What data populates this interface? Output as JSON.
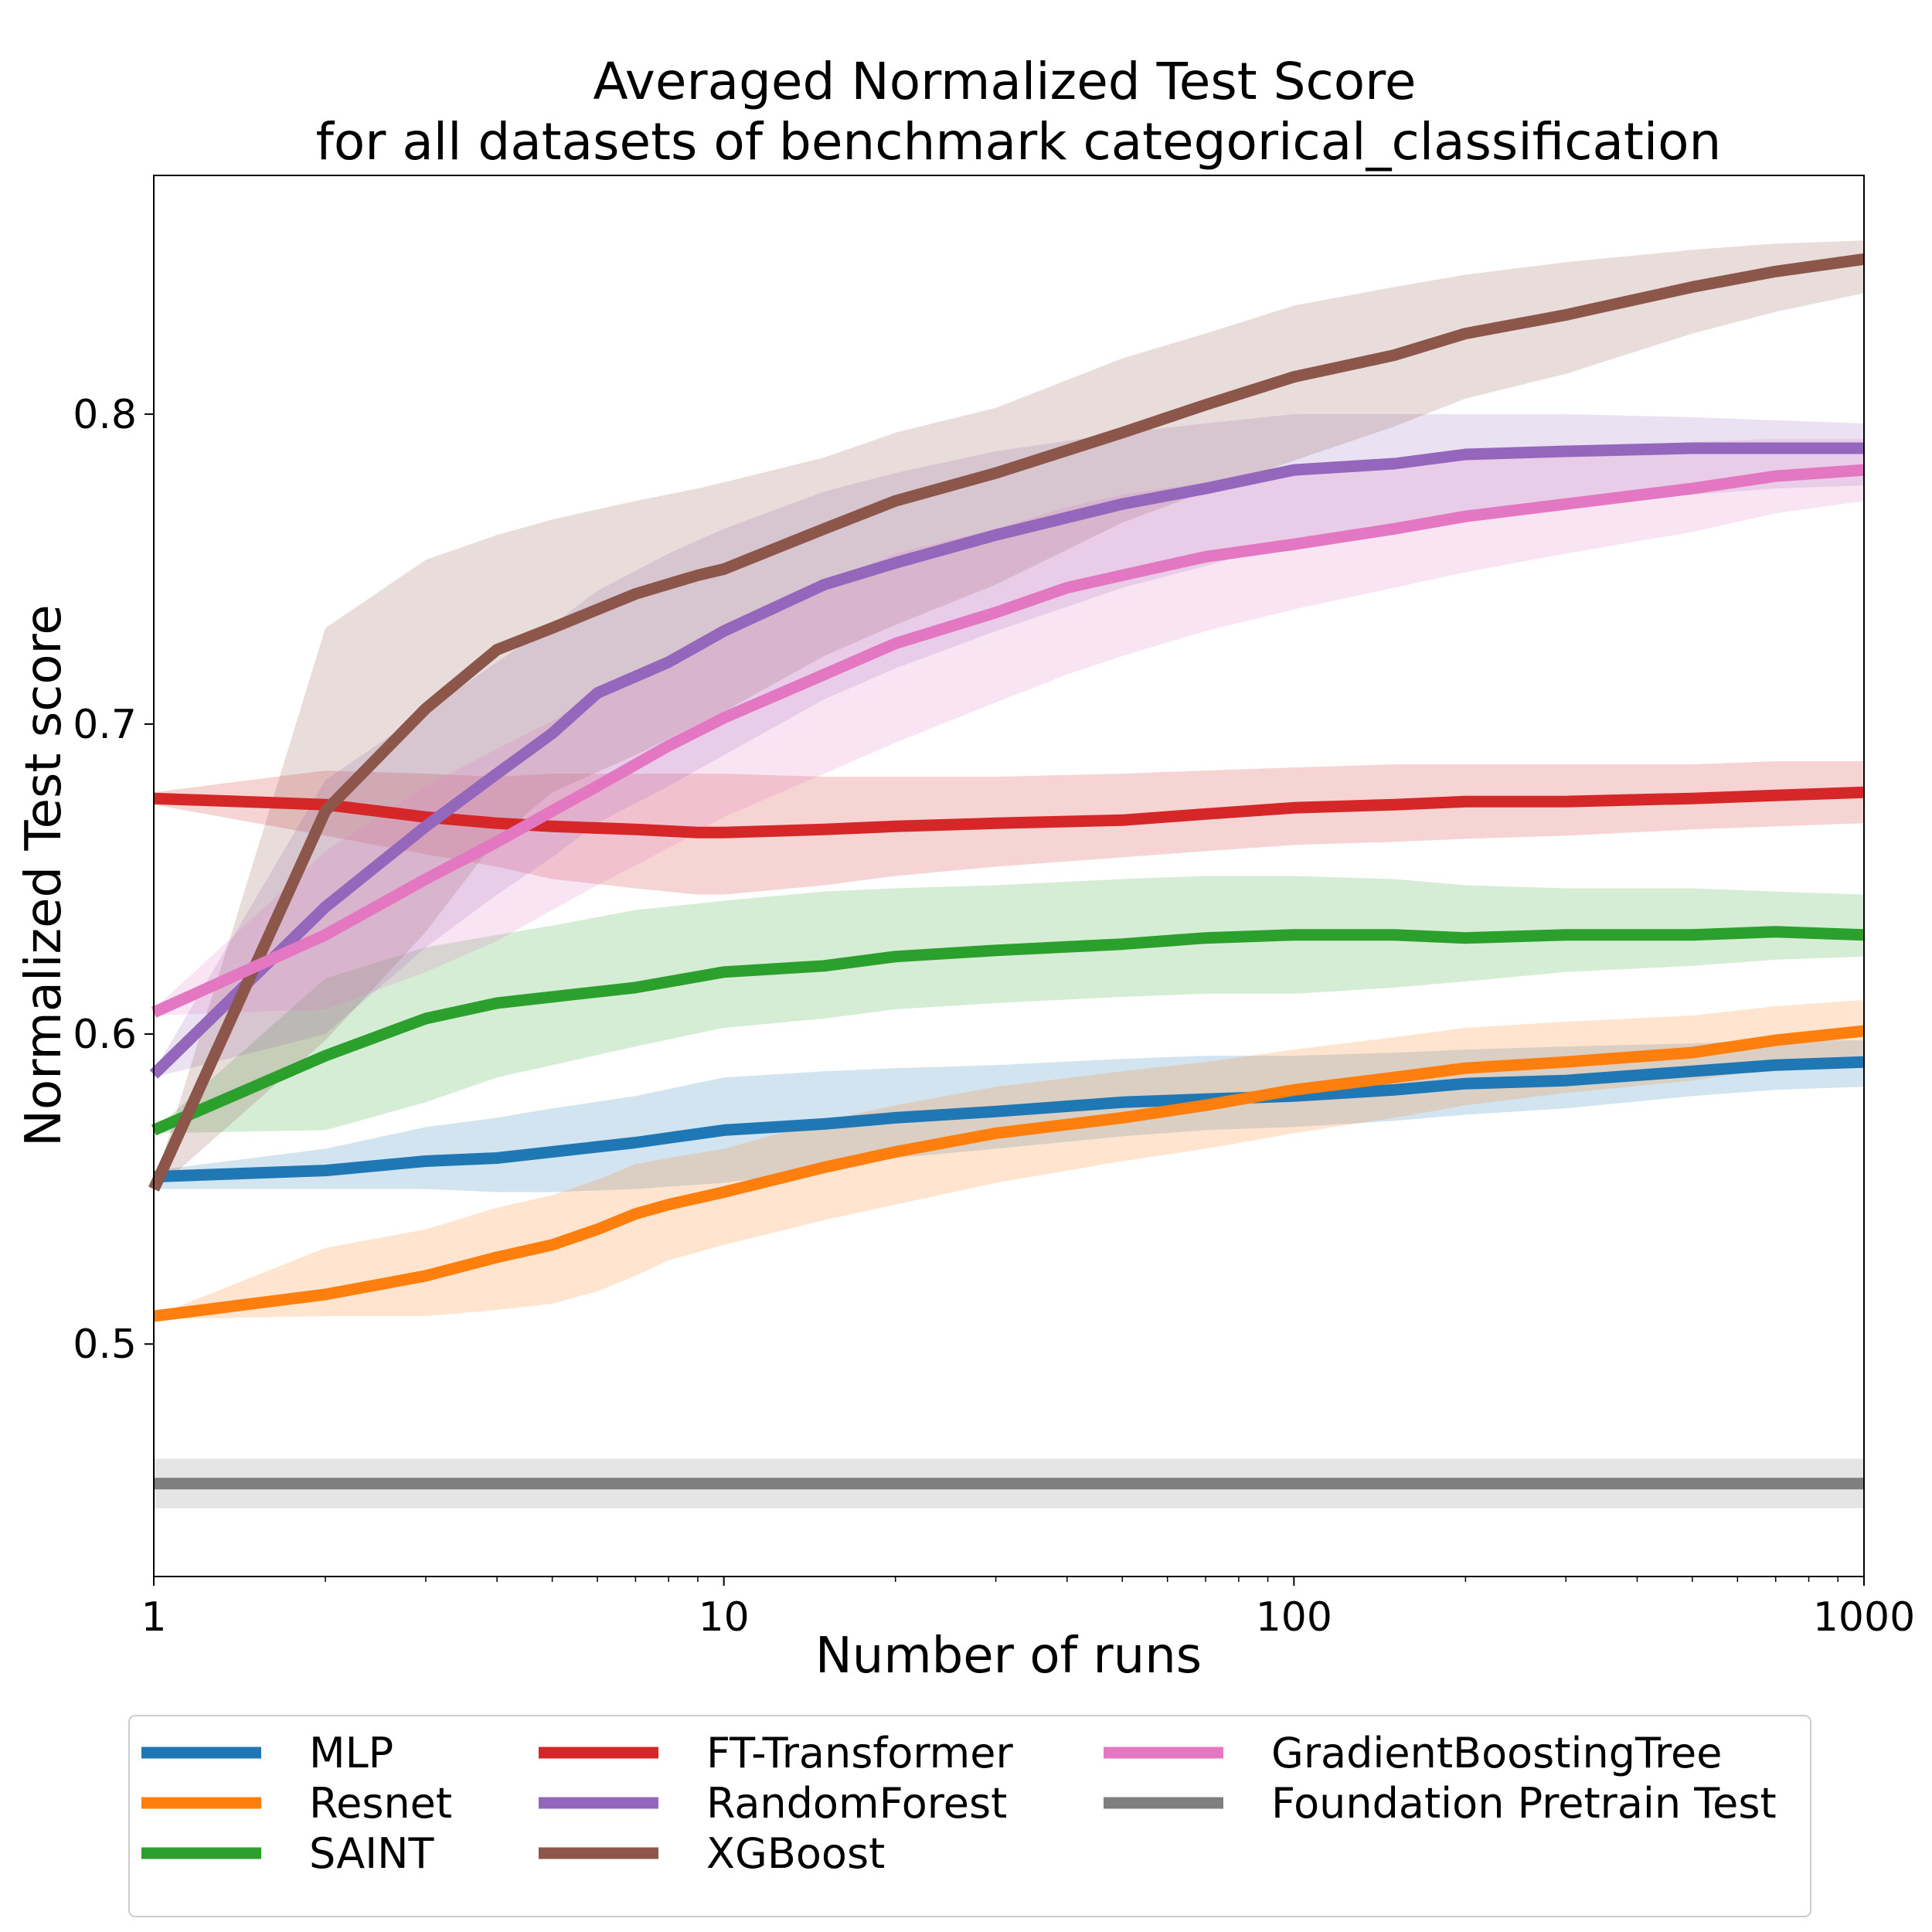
{
  "chart_data": {
    "type": "line",
    "title_line1": "Averaged Normalized Test Score",
    "title_line2": "for all datasets of benchmark categorical_classification",
    "xlabel": "Number of runs",
    "ylabel": "Normalized Test score",
    "xscale": "log",
    "xlim": [
      1,
      1000
    ],
    "ylim": [
      0.425,
      0.877
    ],
    "xticks": [
      {
        "value": 1,
        "label": "1"
      },
      {
        "value": 10,
        "label": "10"
      },
      {
        "value": 100,
        "label": "100"
      },
      {
        "value": 1000,
        "label": "1000"
      }
    ],
    "yticks": [
      {
        "value": 0.5,
        "label": "0.5"
      },
      {
        "value": 0.6,
        "label": "0.6"
      },
      {
        "value": 0.7,
        "label": "0.7"
      },
      {
        "value": 0.8,
        "label": "0.8"
      }
    ],
    "grid": false,
    "legend_position": "bottom",
    "legend_columns": 3,
    "series": [
      {
        "name": "MLP",
        "color": "#1f77b4",
        "x": [
          1,
          2,
          3,
          4,
          5,
          7,
          10,
          15,
          20,
          30,
          50,
          70,
          100,
          150,
          200,
          300,
          500,
          700,
          1000
        ],
        "y": [
          0.554,
          0.556,
          0.559,
          0.56,
          0.562,
          0.565,
          0.569,
          0.571,
          0.573,
          0.575,
          0.578,
          0.579,
          0.58,
          0.582,
          0.584,
          0.585,
          0.588,
          0.59,
          0.591
        ],
        "lower": [
          0.55,
          0.55,
          0.55,
          0.549,
          0.549,
          0.55,
          0.552,
          0.556,
          0.56,
          0.563,
          0.567,
          0.569,
          0.57,
          0.572,
          0.574,
          0.576,
          0.58,
          0.582,
          0.583
        ],
        "upper": [
          0.556,
          0.563,
          0.57,
          0.573,
          0.576,
          0.58,
          0.586,
          0.588,
          0.589,
          0.59,
          0.592,
          0.593,
          0.593,
          0.594,
          0.595,
          0.596,
          0.597,
          0.598,
          0.598
        ]
      },
      {
        "name": "Resnet",
        "color": "#ff7f0e",
        "x": [
          1,
          2,
          3,
          4,
          5,
          6,
          7,
          8,
          10,
          15,
          20,
          30,
          50,
          70,
          100,
          150,
          200,
          300,
          500,
          700,
          1000
        ],
        "y": [
          0.509,
          0.516,
          0.522,
          0.528,
          0.532,
          0.537,
          0.542,
          0.545,
          0.549,
          0.557,
          0.562,
          0.568,
          0.573,
          0.577,
          0.582,
          0.586,
          0.589,
          0.591,
          0.594,
          0.598,
          0.601
        ],
        "lower": [
          0.508,
          0.509,
          0.509,
          0.511,
          0.513,
          0.517,
          0.522,
          0.527,
          0.532,
          0.54,
          0.545,
          0.552,
          0.559,
          0.563,
          0.568,
          0.573,
          0.577,
          0.581,
          0.585,
          0.589,
          0.592
        ],
        "upper": [
          0.509,
          0.531,
          0.537,
          0.544,
          0.548,
          0.553,
          0.558,
          0.56,
          0.563,
          0.572,
          0.577,
          0.583,
          0.588,
          0.591,
          0.595,
          0.599,
          0.602,
          0.604,
          0.606,
          0.609,
          0.611
        ]
      },
      {
        "name": "SAINT",
        "color": "#2ca02c",
        "x": [
          1,
          2,
          3,
          4,
          5,
          7,
          10,
          15,
          20,
          30,
          50,
          70,
          100,
          150,
          200,
          300,
          500,
          700,
          1000
        ],
        "y": [
          0.569,
          0.593,
          0.605,
          0.61,
          0.612,
          0.615,
          0.62,
          0.622,
          0.625,
          0.627,
          0.629,
          0.631,
          0.632,
          0.632,
          0.631,
          0.632,
          0.632,
          0.633,
          0.632
        ],
        "lower": [
          0.568,
          0.569,
          0.578,
          0.586,
          0.59,
          0.596,
          0.602,
          0.605,
          0.608,
          0.61,
          0.612,
          0.613,
          0.613,
          0.615,
          0.617,
          0.62,
          0.622,
          0.624,
          0.625
        ],
        "upper": [
          0.569,
          0.618,
          0.628,
          0.632,
          0.635,
          0.64,
          0.643,
          0.646,
          0.647,
          0.648,
          0.65,
          0.651,
          0.651,
          0.65,
          0.648,
          0.647,
          0.647,
          0.646,
          0.645
        ]
      },
      {
        "name": "FT-Transformer",
        "color": "#d62728",
        "x": [
          1,
          2,
          3,
          4,
          5,
          7,
          9,
          10,
          15,
          20,
          30,
          50,
          70,
          100,
          150,
          200,
          300,
          500,
          700,
          1000
        ],
        "y": [
          0.676,
          0.674,
          0.67,
          0.668,
          0.667,
          0.666,
          0.665,
          0.665,
          0.666,
          0.667,
          0.668,
          0.669,
          0.671,
          0.673,
          0.674,
          0.675,
          0.675,
          0.676,
          0.677,
          0.678
        ],
        "lower": [
          0.674,
          0.664,
          0.658,
          0.654,
          0.65,
          0.647,
          0.645,
          0.645,
          0.648,
          0.651,
          0.654,
          0.657,
          0.659,
          0.661,
          0.662,
          0.663,
          0.664,
          0.666,
          0.667,
          0.668
        ],
        "upper": [
          0.678,
          0.685,
          0.684,
          0.683,
          0.684,
          0.684,
          0.684,
          0.684,
          0.683,
          0.683,
          0.683,
          0.684,
          0.685,
          0.686,
          0.687,
          0.687,
          0.687,
          0.687,
          0.688,
          0.688
        ]
      },
      {
        "name": "RandomForest",
        "color": "#9467bd",
        "x": [
          1,
          2,
          3,
          4,
          5,
          6,
          8,
          10,
          15,
          20,
          30,
          50,
          70,
          100,
          150,
          200,
          300,
          500,
          700,
          1000
        ],
        "y": [
          0.587,
          0.641,
          0.667,
          0.684,
          0.697,
          0.71,
          0.72,
          0.73,
          0.745,
          0.752,
          0.761,
          0.771,
          0.776,
          0.782,
          0.784,
          0.787,
          0.788,
          0.789,
          0.789,
          0.789
        ],
        "lower": [
          0.586,
          0.6,
          0.628,
          0.645,
          0.657,
          0.668,
          0.68,
          0.69,
          0.708,
          0.718,
          0.73,
          0.744,
          0.751,
          0.759,
          0.764,
          0.768,
          0.771,
          0.774,
          0.776,
          0.777
        ],
        "upper": [
          0.588,
          0.682,
          0.704,
          0.72,
          0.732,
          0.743,
          0.755,
          0.763,
          0.775,
          0.781,
          0.788,
          0.794,
          0.797,
          0.8,
          0.8,
          0.8,
          0.8,
          0.799,
          0.798,
          0.797
        ]
      },
      {
        "name": "XGBoost",
        "color": "#8c564b",
        "x": [
          1,
          2,
          3,
          4,
          5,
          7,
          9,
          10,
          15,
          20,
          30,
          50,
          70,
          100,
          150,
          200,
          300,
          500,
          700,
          1000
        ],
        "y": [
          0.55,
          0.672,
          0.705,
          0.724,
          0.731,
          0.742,
          0.748,
          0.75,
          0.763,
          0.772,
          0.781,
          0.794,
          0.803,
          0.812,
          0.819,
          0.826,
          0.832,
          0.841,
          0.846,
          0.85
        ],
        "lower": [
          0.549,
          0.598,
          0.633,
          0.663,
          0.678,
          0.69,
          0.7,
          0.704,
          0.722,
          0.732,
          0.745,
          0.765,
          0.775,
          0.785,
          0.796,
          0.805,
          0.813,
          0.826,
          0.833,
          0.839
        ],
        "upper": [
          0.551,
          0.731,
          0.753,
          0.761,
          0.766,
          0.772,
          0.776,
          0.778,
          0.786,
          0.794,
          0.802,
          0.818,
          0.826,
          0.835,
          0.841,
          0.845,
          0.849,
          0.853,
          0.855,
          0.856
        ]
      },
      {
        "name": "GradientBoostingTree",
        "color": "#e377c2",
        "x": [
          1,
          2,
          3,
          4,
          5,
          6,
          8,
          10,
          15,
          20,
          30,
          40,
          50,
          70,
          100,
          150,
          200,
          300,
          500,
          700,
          1000
        ],
        "y": [
          0.607,
          0.632,
          0.65,
          0.662,
          0.672,
          0.68,
          0.693,
          0.702,
          0.716,
          0.726,
          0.736,
          0.744,
          0.748,
          0.754,
          0.758,
          0.763,
          0.767,
          0.771,
          0.776,
          0.78,
          0.782
        ],
        "lower": [
          0.606,
          0.608,
          0.62,
          0.63,
          0.64,
          0.648,
          0.66,
          0.67,
          0.684,
          0.694,
          0.707,
          0.716,
          0.722,
          0.73,
          0.737,
          0.744,
          0.749,
          0.755,
          0.762,
          0.768,
          0.772
        ],
        "upper": [
          0.608,
          0.659,
          0.68,
          0.692,
          0.701,
          0.71,
          0.721,
          0.73,
          0.745,
          0.755,
          0.763,
          0.77,
          0.774,
          0.778,
          0.781,
          0.785,
          0.787,
          0.789,
          0.791,
          0.792,
          0.792
        ]
      },
      {
        "name": "Foundation Pretrain Test",
        "color": "#7f7f7f",
        "x": [
          1,
          1000
        ],
        "y": [
          0.455,
          0.455
        ],
        "lower": [
          0.447,
          0.447
        ],
        "upper": [
          0.463,
          0.463
        ]
      }
    ]
  }
}
